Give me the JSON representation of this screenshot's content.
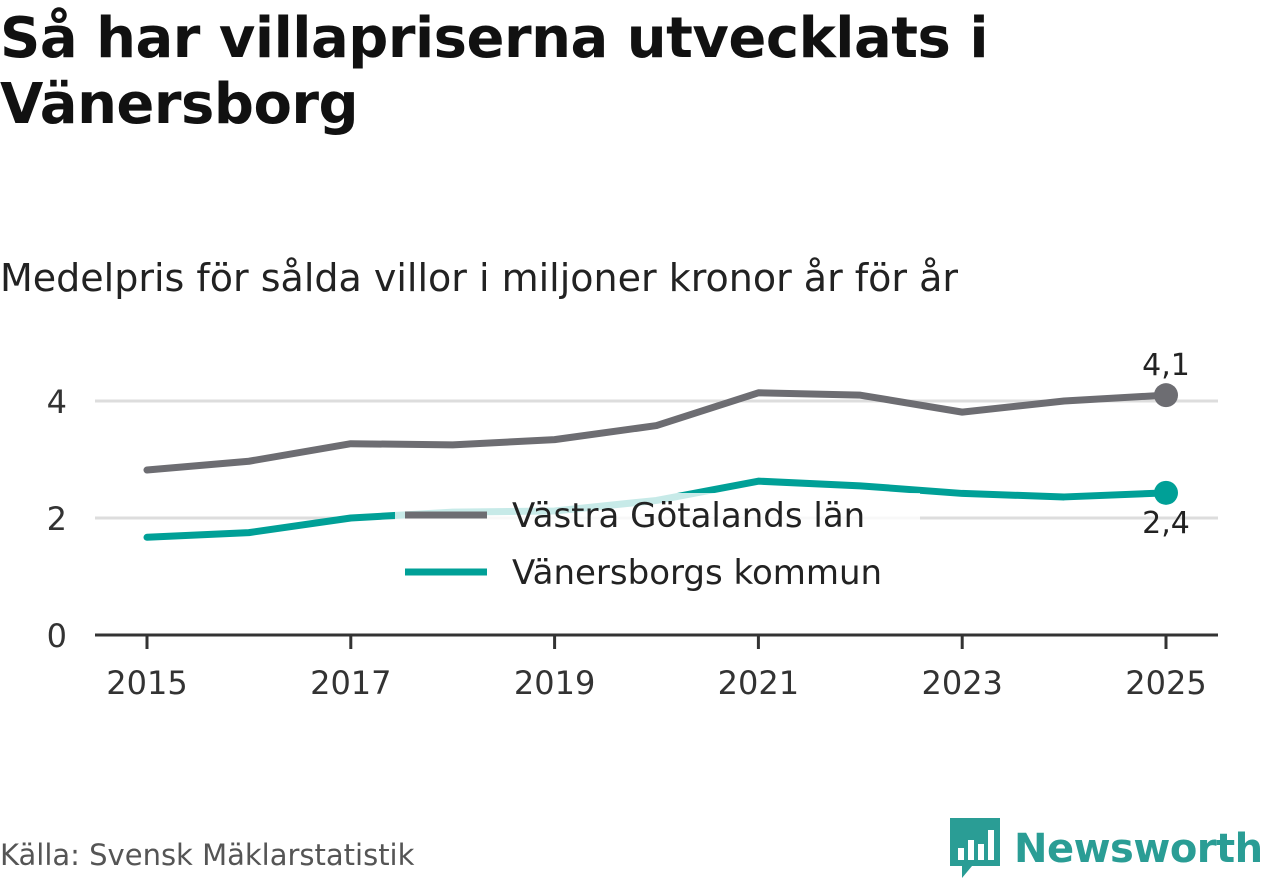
{
  "chart_data": {
    "type": "line",
    "title": "Så har villapriserna utvecklats i Vänersborg",
    "subtitle": "Medelpris för sålda villor i miljoner kronor år för år",
    "x": [
      2015,
      2016,
      2017,
      2018,
      2019,
      2020,
      2021,
      2022,
      2023,
      2024,
      2025
    ],
    "x_tick_labels": [
      "2015",
      "2017",
      "2019",
      "2021",
      "2023",
      "2025"
    ],
    "y_tick_labels": [
      "0",
      "2",
      "4"
    ],
    "ylim": [
      0,
      4.6
    ],
    "xlabel": "",
    "ylabel": "",
    "grid": true,
    "legend_placement": "center",
    "series": [
      {
        "name": "Västra Götalands län",
        "color": "#6d6d72",
        "values": [
          2.82,
          2.97,
          3.27,
          3.25,
          3.34,
          3.58,
          4.14,
          4.1,
          3.81,
          4.0,
          4.1
        ],
        "end_label": "4,1"
      },
      {
        "name": "Vänersborgs kommun",
        "color": "#00a097",
        "values": [
          1.67,
          1.75,
          2.0,
          2.1,
          2.12,
          2.3,
          2.63,
          2.55,
          2.42,
          2.36,
          2.43
        ],
        "end_label": "2,4"
      }
    ]
  },
  "footer": {
    "source": "Källa: Svensk Mäklarstatistik",
    "brand": "Newsworthy"
  },
  "colors": {
    "grid": "#dddddd",
    "axis": "#333333",
    "brand": "#2a9d95"
  }
}
